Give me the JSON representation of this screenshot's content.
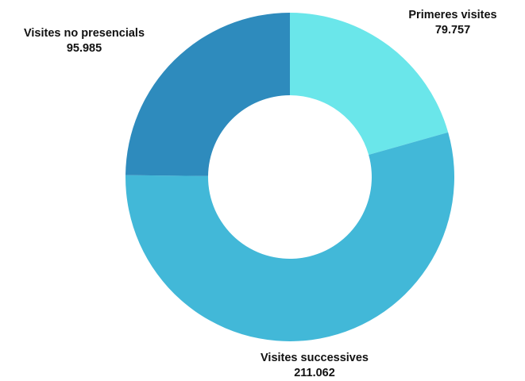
{
  "chart_data": {
    "type": "pie",
    "title": "",
    "donut": true,
    "slices": [
      {
        "name": "Primeres visites",
        "value": 79757,
        "value_label": "79.757",
        "color": "#6ae6ea"
      },
      {
        "name": "Visites successives",
        "value": 211062,
        "value_label": "211.062",
        "color": "#42b8d8"
      },
      {
        "name": "Visites no presencials",
        "value": 95985,
        "value_label": "95.985",
        "color": "#2e8bbd"
      }
    ],
    "legend": "none"
  }
}
